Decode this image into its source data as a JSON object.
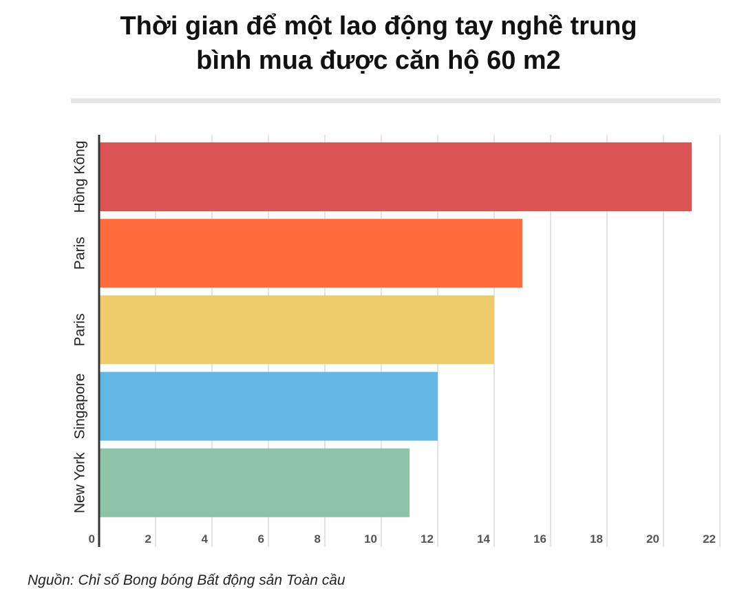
{
  "chart_data": {
    "type": "bar",
    "orientation": "horizontal",
    "title": [
      "Thời gian để một lao động tay nghề trung",
      "bình mua được căn hộ 60 m2"
    ],
    "categories": [
      "Hồng Kông",
      "Paris",
      "Paris",
      "Singapore",
      "New York"
    ],
    "values": [
      21,
      15,
      14,
      12,
      11
    ],
    "colors": [
      "#dc5356",
      "#ff6b3d",
      "#edcb6a",
      "#62b7e5",
      "#8ec3a7"
    ],
    "xlim": [
      0,
      22
    ],
    "xticks": [
      0,
      2,
      4,
      6,
      8,
      10,
      12,
      14,
      16,
      18,
      20,
      22
    ],
    "grid": true,
    "source": "Nguồn: Chỉ số Bong bóng Bất động sản Toàn cầu"
  }
}
